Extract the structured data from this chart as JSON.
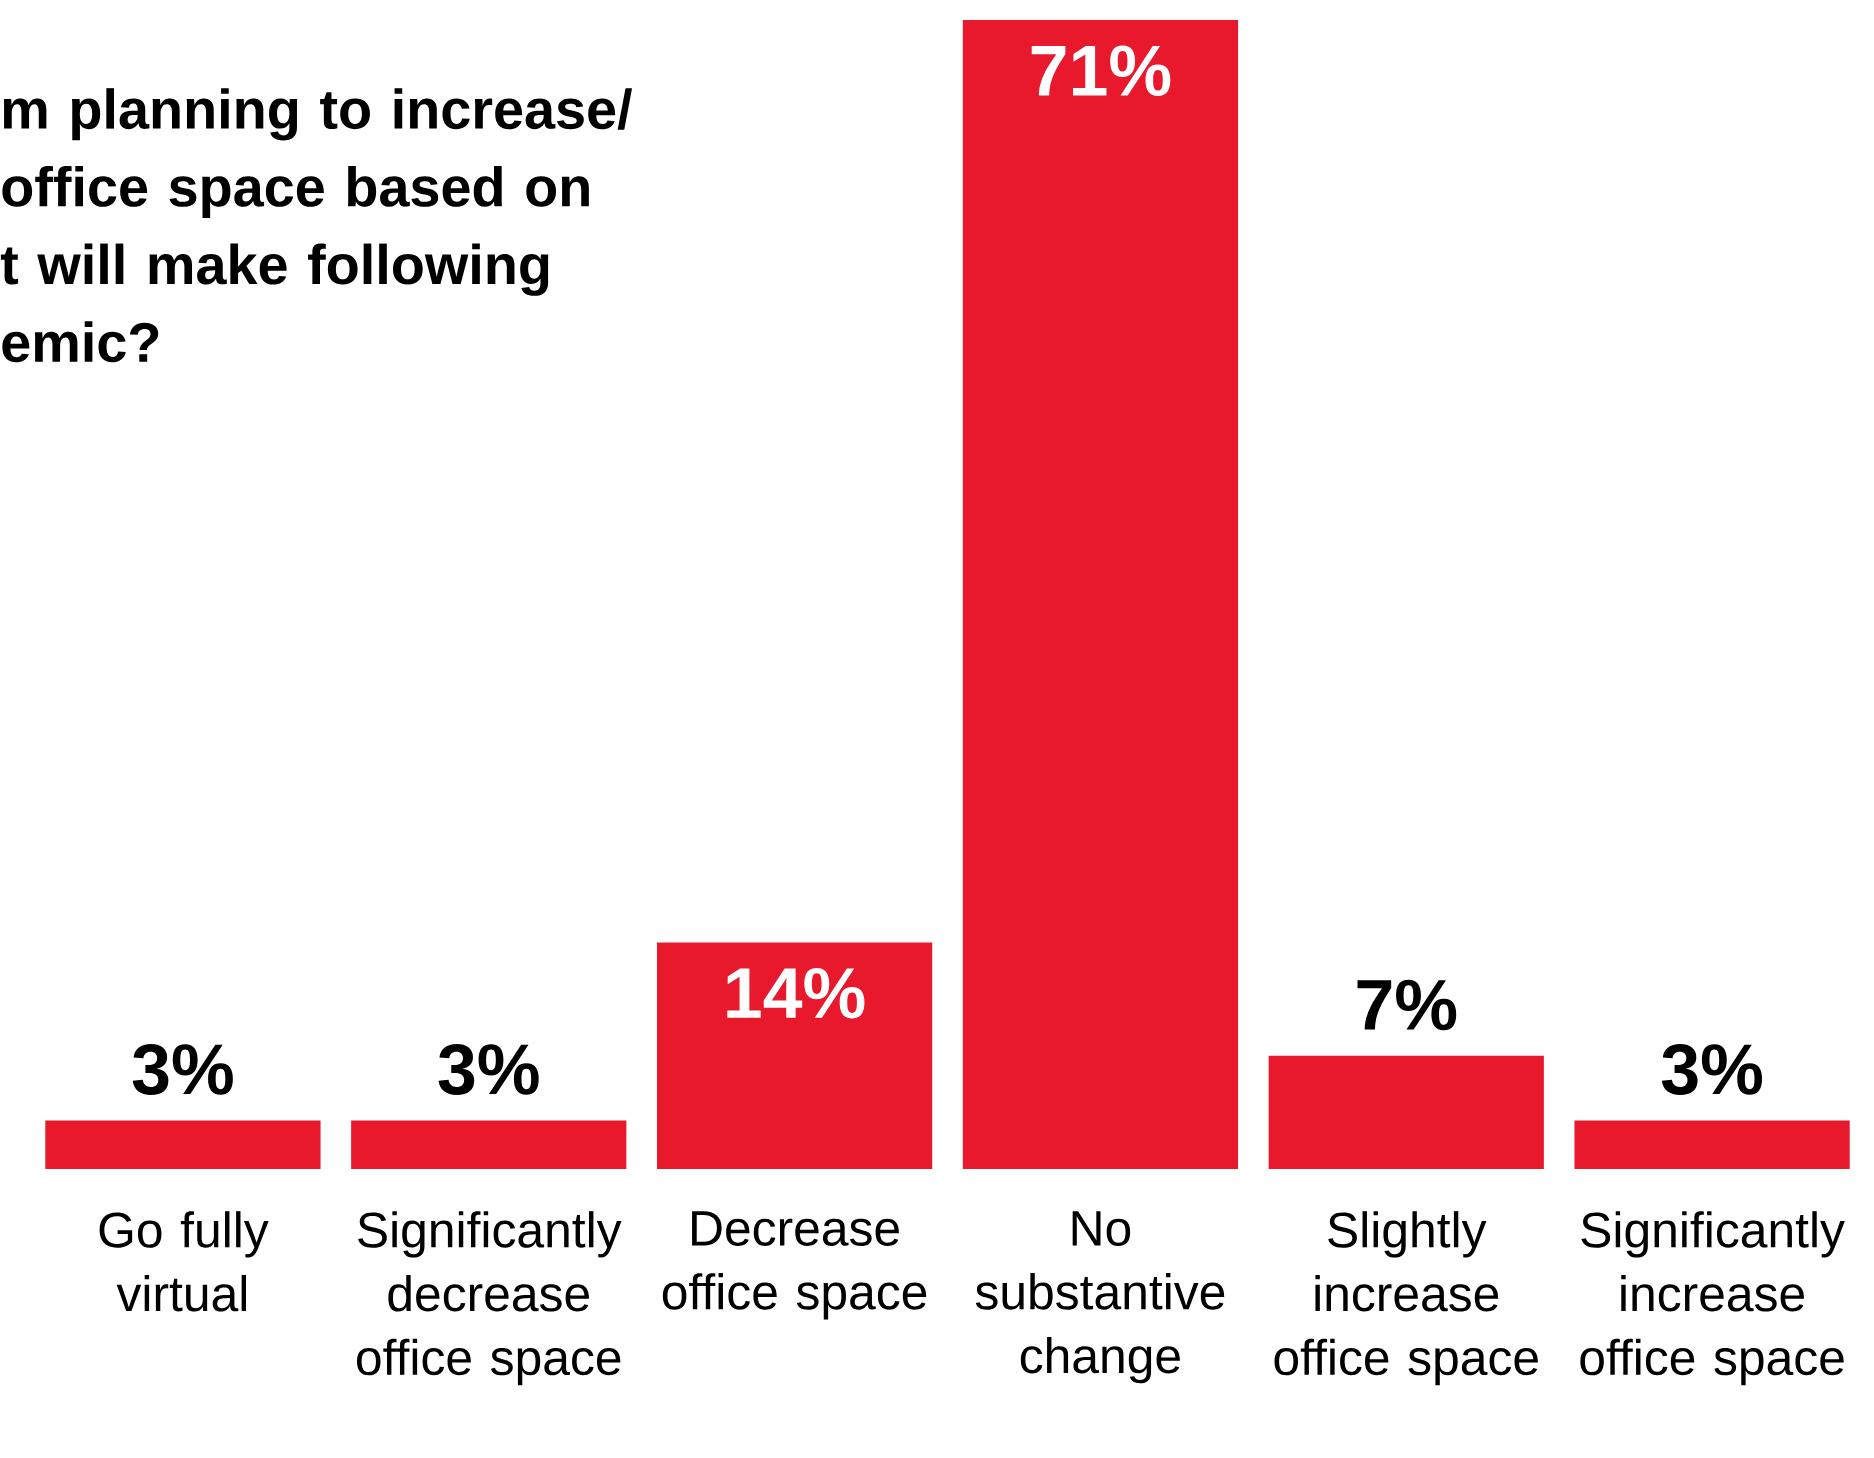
{
  "chart_data": {
    "type": "bar",
    "title": "m planning to increase/ office space based on t will make following emic?",
    "categories": [
      "Go fully virtual",
      "Significantly decrease office space",
      "Decrease office space",
      "No substantive change",
      "Slightly increase office space",
      "Significantly increase office space"
    ],
    "values": [
      3,
      3,
      14,
      71,
      7,
      3
    ],
    "value_labels": [
      "3%",
      "3%",
      "14%",
      "71%",
      "7%",
      "3%"
    ],
    "color": "#e8192c"
  }
}
